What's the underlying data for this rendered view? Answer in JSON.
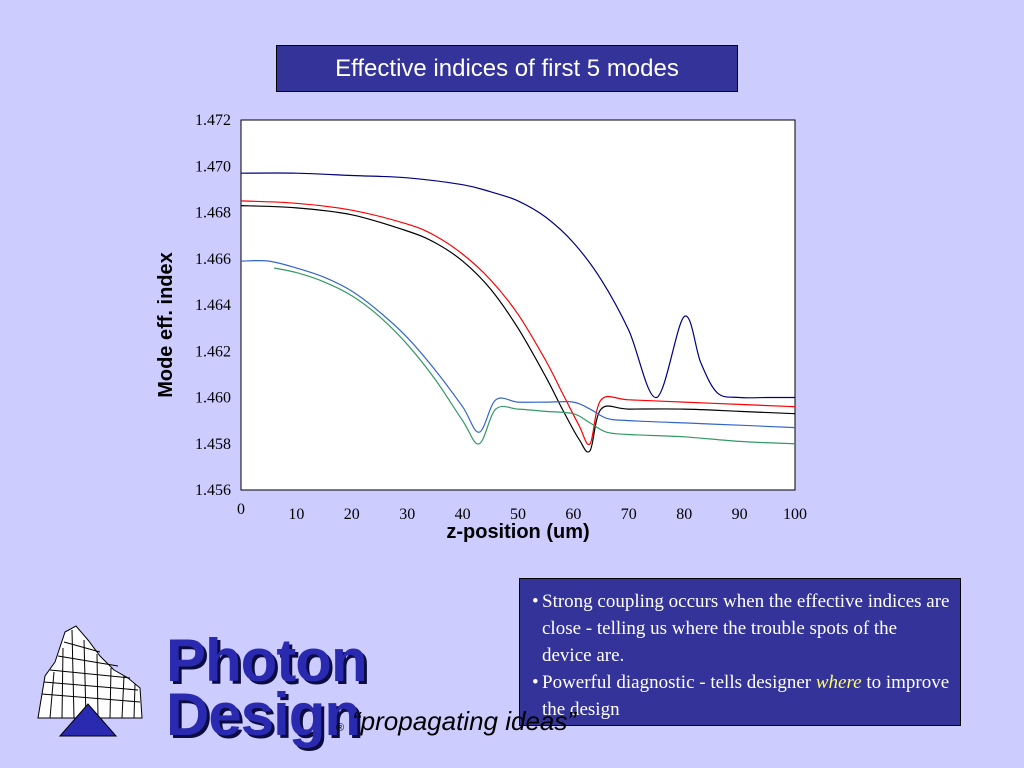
{
  "slide_title": "Effective indices of first 5 modes",
  "notes": [
    {
      "before": "Strong coupling occurs when the effective indices are close - telling us where the trouble spots of the device are.",
      "emph": "",
      "after": ""
    },
    {
      "before": "Powerful diagnostic - tells designer ",
      "emph": "where",
      "after": " to improve the design"
    }
  ],
  "logo": {
    "line1": "Photon",
    "line2": "Design",
    "mark": "®"
  },
  "tagline": "“propagating ideas”",
  "chart_data": {
    "type": "line",
    "title": "",
    "xlabel": "z-position (um)",
    "ylabel": "Mode eff. index",
    "xlim": [
      0,
      100
    ],
    "ylim": [
      1.456,
      1.472
    ],
    "x_ticks": [
      "0",
      "10",
      "20",
      "30",
      "40",
      "50",
      "60",
      "70",
      "80",
      "90",
      "100"
    ],
    "y_ticks": [
      "1.456",
      "1.458",
      "1.460",
      "1.462",
      "1.464",
      "1.466",
      "1.468",
      "1.470",
      "1.472"
    ],
    "grid": false,
    "legend": "none",
    "series": [
      {
        "color": "#000080",
        "x": [
          0,
          10,
          20,
          30,
          40,
          45,
          50,
          55,
          60,
          65,
          70,
          75,
          80,
          83,
          86,
          90,
          95,
          100
        ],
        "y": [
          1.4697,
          1.4697,
          1.4696,
          1.4695,
          1.4692,
          1.4689,
          1.4685,
          1.4678,
          1.4667,
          1.4651,
          1.4629,
          1.46,
          1.4635,
          1.4615,
          1.4602,
          1.46,
          1.46,
          1.46
        ]
      },
      {
        "color": "#ff0000",
        "x": [
          0,
          10,
          20,
          30,
          35,
          40,
          45,
          50,
          55,
          58,
          61,
          63,
          65,
          70,
          80,
          90,
          100
        ],
        "y": [
          1.4685,
          1.4684,
          1.4681,
          1.4675,
          1.467,
          1.4662,
          1.4651,
          1.4636,
          1.4616,
          1.4602,
          1.4588,
          1.458,
          1.4599,
          1.4599,
          1.4598,
          1.4597,
          1.4596
        ]
      },
      {
        "color": "#000000",
        "x": [
          0,
          10,
          20,
          30,
          35,
          40,
          45,
          50,
          55,
          58,
          61,
          63,
          65,
          70,
          80,
          90,
          100
        ],
        "y": [
          1.4683,
          1.4682,
          1.4679,
          1.4672,
          1.4667,
          1.4659,
          1.4647,
          1.463,
          1.4609,
          1.4595,
          1.4582,
          1.4577,
          1.4595,
          1.4595,
          1.4595,
          1.4594,
          1.4593
        ]
      },
      {
        "color": "#3366cc",
        "x": [
          0,
          5,
          10,
          15,
          20,
          25,
          30,
          35,
          40,
          43,
          46,
          50,
          55,
          60,
          63,
          66,
          70,
          80,
          90,
          100
        ],
        "y": [
          1.4659,
          1.4659,
          1.4656,
          1.4652,
          1.4646,
          1.4637,
          1.4626,
          1.4612,
          1.4596,
          1.4585,
          1.4599,
          1.4598,
          1.4598,
          1.4598,
          1.4595,
          1.4591,
          1.459,
          1.4589,
          1.4588,
          1.4587
        ]
      },
      {
        "color": "#339966",
        "x": [
          6,
          10,
          15,
          20,
          25,
          30,
          35,
          40,
          43,
          46,
          50,
          55,
          60,
          63,
          66,
          70,
          80,
          90,
          100
        ],
        "y": [
          1.4656,
          1.4654,
          1.465,
          1.4644,
          1.4635,
          1.4623,
          1.4608,
          1.459,
          1.458,
          1.4595,
          1.4595,
          1.4594,
          1.4593,
          1.4589,
          1.4585,
          1.4584,
          1.4583,
          1.4581,
          1.458
        ]
      }
    ]
  }
}
